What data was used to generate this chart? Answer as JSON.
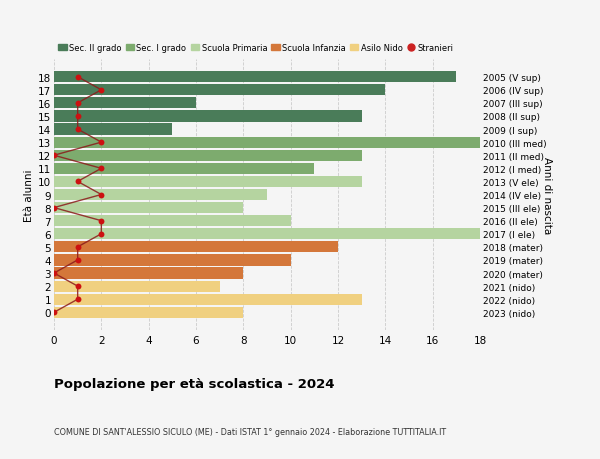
{
  "ages": [
    18,
    17,
    16,
    15,
    14,
    13,
    12,
    11,
    10,
    9,
    8,
    7,
    6,
    5,
    4,
    3,
    2,
    1,
    0
  ],
  "right_labels": [
    "2005 (V sup)",
    "2006 (IV sup)",
    "2007 (III sup)",
    "2008 (II sup)",
    "2009 (I sup)",
    "2010 (III med)",
    "2011 (II med)",
    "2012 (I med)",
    "2013 (V ele)",
    "2014 (IV ele)",
    "2015 (III ele)",
    "2016 (II ele)",
    "2017 (I ele)",
    "2018 (mater)",
    "2019 (mater)",
    "2020 (mater)",
    "2021 (nido)",
    "2022 (nido)",
    "2023 (nido)"
  ],
  "bar_values": [
    17,
    14,
    6,
    13,
    5,
    18,
    13,
    11,
    13,
    9,
    8,
    10,
    18,
    12,
    10,
    8,
    7,
    13,
    8
  ],
  "bar_colors": [
    "#4a7c59",
    "#4a7c59",
    "#4a7c59",
    "#4a7c59",
    "#4a7c59",
    "#7dab6e",
    "#7dab6e",
    "#7dab6e",
    "#b5d4a0",
    "#b5d4a0",
    "#b5d4a0",
    "#b5d4a0",
    "#b5d4a0",
    "#d4773a",
    "#d4773a",
    "#d4773a",
    "#f0d080",
    "#f0d080",
    "#f0d080"
  ],
  "stranieri_values": [
    1,
    2,
    1,
    1,
    1,
    2,
    0,
    2,
    1,
    2,
    0,
    2,
    2,
    1,
    1,
    0,
    1,
    1,
    0
  ],
  "legend_labels": [
    "Sec. II grado",
    "Sec. I grado",
    "Scuola Primaria",
    "Scuola Infanzia",
    "Asilo Nido",
    "Stranieri"
  ],
  "legend_colors": [
    "#4a7c59",
    "#7dab6e",
    "#b5d4a0",
    "#d4773a",
    "#f0d080",
    "#cc2222"
  ],
  "ylabel_left": "Età alunni",
  "ylabel_right": "Anni di nascita",
  "title": "Popolazione per età scolastica - 2024",
  "subtitle": "COMUNE DI SANT'ALESSIO SICULO (ME) - Dati ISTAT 1° gennaio 2024 - Elaborazione TUTTITALIA.IT",
  "xlim": [
    0,
    18
  ],
  "xticks": [
    0,
    2,
    4,
    6,
    8,
    10,
    12,
    14,
    16,
    18
  ],
  "bg_color": "#f5f5f5",
  "grid_color": "#cccccc"
}
